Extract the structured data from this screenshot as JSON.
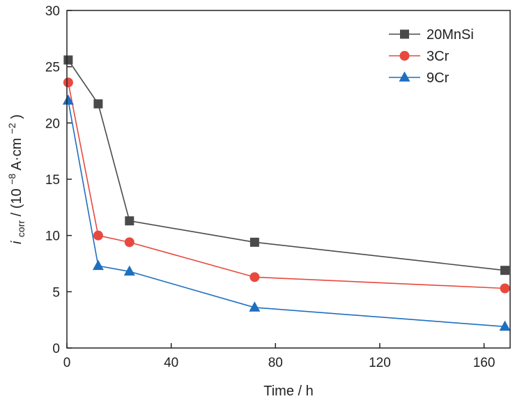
{
  "chart_data": {
    "type": "line",
    "xlabel": "Time / h",
    "ylabel": {
      "main": "i",
      "sub": "corr",
      "pre": " / (10",
      "exp1": "−8",
      "mid": " A·cm",
      "exp2": "−2",
      "post": ")"
    },
    "xlim": [
      0,
      170
    ],
    "ylim": [
      0,
      30
    ],
    "xticks": [
      0,
      40,
      80,
      120,
      160
    ],
    "yticks": [
      0,
      5,
      10,
      15,
      20,
      25,
      30
    ],
    "legend_position": "top-right",
    "grid": false,
    "series": [
      {
        "name": "20MnSi",
        "marker": "square",
        "color": "#4a4a4a",
        "x": [
          0.5,
          12,
          24,
          72,
          168
        ],
        "y": [
          25.6,
          21.7,
          11.3,
          9.4,
          6.9
        ]
      },
      {
        "name": "3Cr",
        "marker": "circle",
        "color": "#e8493e",
        "x": [
          0.5,
          12,
          24,
          72,
          168
        ],
        "y": [
          23.6,
          10.0,
          9.4,
          6.3,
          5.3
        ]
      },
      {
        "name": "9Cr",
        "marker": "triangle",
        "color": "#1f6fbf",
        "x": [
          0.5,
          12,
          24,
          72,
          168
        ],
        "y": [
          22.0,
          7.3,
          6.8,
          3.6,
          1.9
        ]
      }
    ]
  }
}
